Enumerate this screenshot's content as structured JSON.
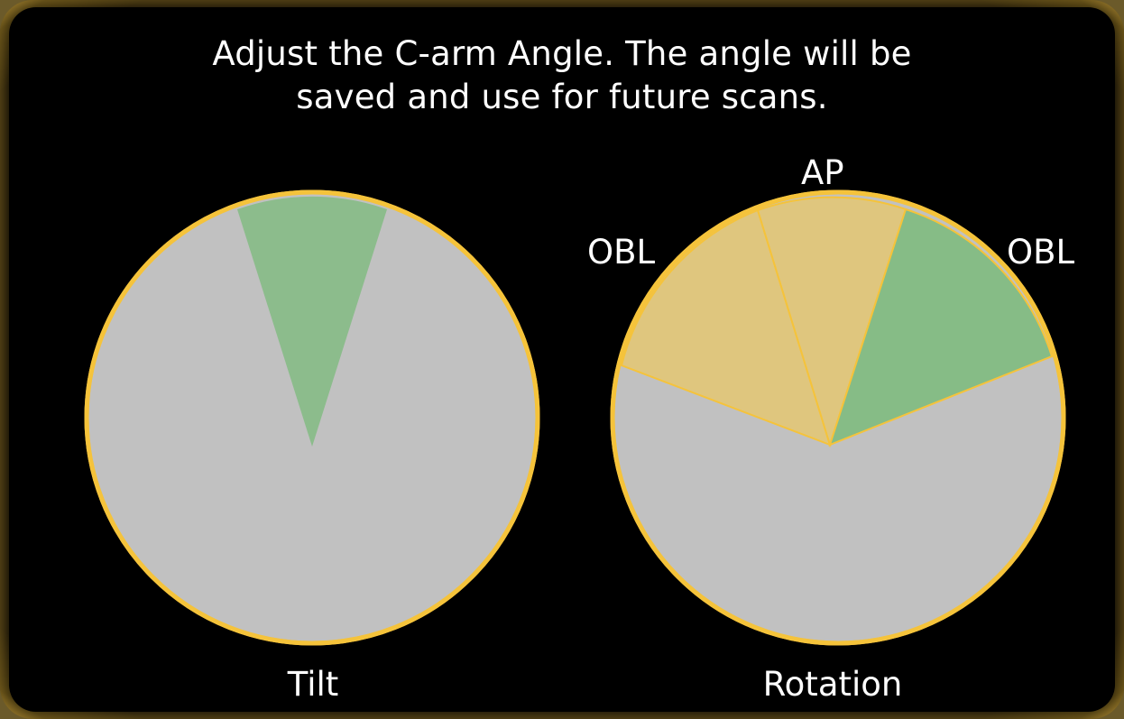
{
  "instruction": {
    "line1": "Adjust the C-arm Angle. The angle will be",
    "line2": "saved and use for future scans."
  },
  "tilt": {
    "label": "Tilt"
  },
  "rotation": {
    "label": "Rotation",
    "ap_label": "AP",
    "obl_left_label": "OBL",
    "obl_right_label": "OBL"
  },
  "colors": {
    "rim": "#f5c33b",
    "dial_fill": "#c1c1c1",
    "selected_sector": "#86bc86",
    "range_sector": "#dfc67e",
    "text": "#ffffff",
    "background": "#000000"
  }
}
